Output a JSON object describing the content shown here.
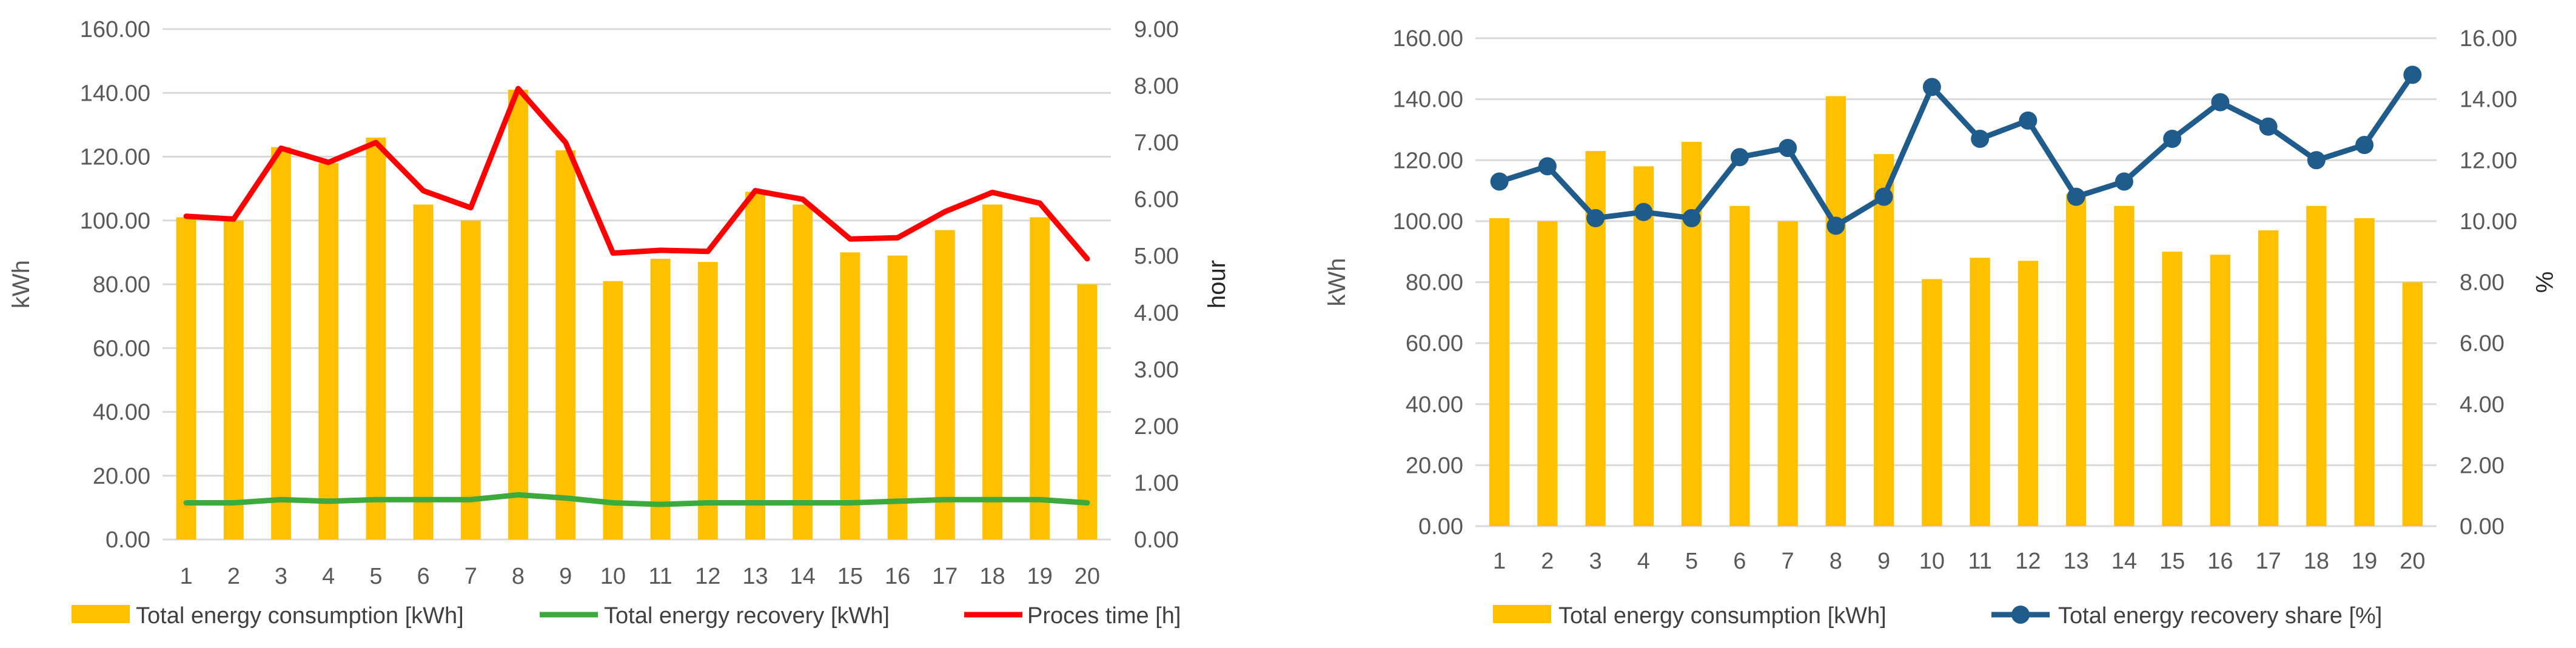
{
  "colors": {
    "consumption": "#FFC000",
    "recovery": "#3CAA3C",
    "process_time": "#FF0000",
    "share": "#1F5C8B",
    "grid": "#D9D9D9",
    "tick": "#595959"
  },
  "chart_data": [
    {
      "type": "bar",
      "categories": [
        "1",
        "2",
        "3",
        "4",
        "5",
        "6",
        "7",
        "8",
        "9",
        "10",
        "11",
        "12",
        "13",
        "14",
        "15",
        "16",
        "17",
        "18",
        "19",
        "20"
      ],
      "ylabel": "kWh",
      "y2label": "hour",
      "ylim": [
        0,
        160
      ],
      "y2lim": [
        0,
        9
      ],
      "yticks": [
        "0.00",
        "20.00",
        "40.00",
        "60.00",
        "80.00",
        "100.00",
        "120.00",
        "140.00",
        "160.00"
      ],
      "y2ticks": [
        "0.00",
        "1.00",
        "2.00",
        "3.00",
        "4.00",
        "5.00",
        "6.00",
        "7.00",
        "8.00",
        "9.00"
      ],
      "series": [
        {
          "name": "Total energy consumption  [kWh]",
          "type": "bar",
          "axis": "left",
          "values": [
            101,
            100,
            123,
            118,
            126,
            105,
            100,
            141,
            122,
            81,
            88,
            87,
            109,
            105,
            90,
            89,
            97,
            105,
            101,
            80
          ]
        },
        {
          "name": "Total energy recovery  [kWh]",
          "type": "line",
          "axis": "left",
          "values": [
            11.5,
            11.5,
            12.5,
            12,
            12.5,
            12.5,
            12.5,
            14,
            13,
            11.5,
            11,
            11.5,
            11.5,
            11.5,
            11.5,
            12,
            12.5,
            12.5,
            12.5,
            11.5
          ]
        },
        {
          "name": "Proces time [h]",
          "type": "line",
          "axis": "right",
          "values": [
            5.7,
            5.65,
            6.9,
            6.65,
            7.0,
            6.15,
            5.85,
            7.95,
            7.0,
            5.05,
            5.1,
            5.08,
            6.15,
            6.0,
            5.3,
            5.32,
            5.78,
            6.12,
            5.93,
            4.95
          ]
        }
      ],
      "legend": "bottom"
    },
    {
      "type": "bar",
      "categories": [
        "1",
        "2",
        "3",
        "4",
        "5",
        "6",
        "7",
        "8",
        "9",
        "10",
        "11",
        "12",
        "13",
        "14",
        "15",
        "16",
        "17",
        "18",
        "19",
        "20"
      ],
      "ylabel": "kWh",
      "y2label": "%",
      "ylim": [
        0,
        160
      ],
      "y2lim": [
        0,
        16
      ],
      "yticks": [
        "0.00",
        "20.00",
        "40.00",
        "60.00",
        "80.00",
        "100.00",
        "120.00",
        "140.00",
        "160.00"
      ],
      "y2ticks": [
        "0.00",
        "2.00",
        "4.00",
        "6.00",
        "8.00",
        "10.00",
        "12.00",
        "14.00",
        "16.00"
      ],
      "series": [
        {
          "name": "Total energy consumption  [kWh]",
          "type": "bar",
          "axis": "left",
          "values": [
            101,
            100,
            123,
            118,
            126,
            105,
            100,
            141,
            122,
            81,
            88,
            87,
            109,
            105,
            90,
            89,
            97,
            105,
            101,
            80
          ]
        },
        {
          "name": "Total energy recovery share [%]",
          "type": "line-marker",
          "axis": "right",
          "values": [
            11.3,
            11.8,
            10.1,
            10.3,
            10.1,
            12.1,
            12.4,
            9.85,
            10.8,
            14.4,
            12.7,
            13.3,
            10.8,
            11.3,
            12.7,
            13.9,
            13.1,
            12.0,
            12.5,
            14.8
          ]
        }
      ],
      "legend": "bottom"
    }
  ]
}
